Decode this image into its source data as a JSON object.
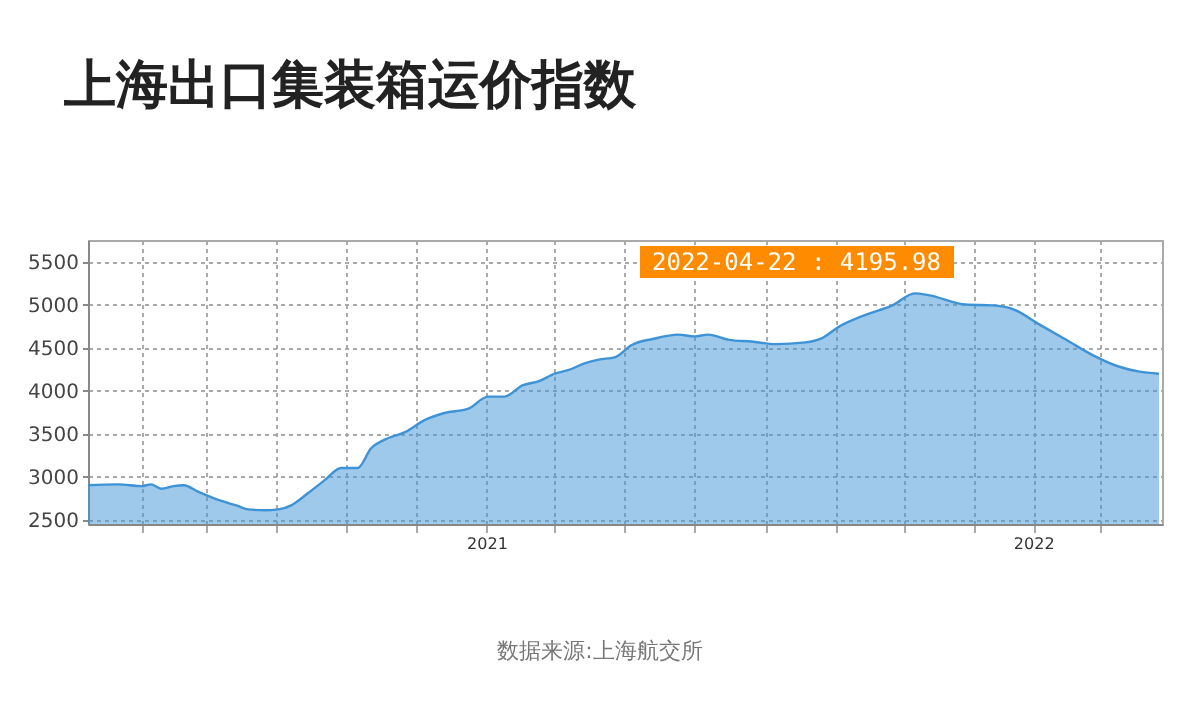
{
  "chart_data": {
    "type": "area",
    "title": "上海出口集装箱运价指数",
    "x": [
      "2020-04-10",
      "2020-04-30",
      "2020-05-16",
      "2020-05-22",
      "2020-05-29",
      "2020-06-06",
      "2020-06-13",
      "2020-06-22",
      "2020-07-06",
      "2020-07-19",
      "2020-07-26",
      "2020-08-06",
      "2020-08-15",
      "2020-08-24",
      "2020-09-04",
      "2020-09-15",
      "2020-09-26",
      "2020-10-07",
      "2020-10-16",
      "2020-10-25",
      "2020-11-08",
      "2020-11-21",
      "2020-12-04",
      "2020-12-20",
      "2021-01-02",
      "2021-01-13",
      "2021-01-25",
      "2021-02-05",
      "2021-02-16",
      "2021-02-25",
      "2021-03-08",
      "2021-03-17",
      "2021-03-28",
      "2021-04-08",
      "2021-04-22",
      "2021-05-09",
      "2021-05-20",
      "2021-05-29",
      "2021-06-12",
      "2021-06-27",
      "2021-07-13",
      "2021-08-02",
      "2021-08-13",
      "2021-08-24",
      "2021-09-11",
      "2021-09-29",
      "2021-10-14",
      "2021-10-23",
      "2021-11-17",
      "2021-12-05",
      "2021-12-18",
      "2022-01-05",
      "2022-01-23",
      "2022-02-10",
      "2022-02-27",
      "2022-03-13",
      "2022-03-26"
    ],
    "series": [
      {
        "color": "#3d93d6",
        "values": [
          2900,
          2910,
          2890,
          2910,
          2860,
          2890,
          2900,
          2830,
          2730,
          2660,
          2620,
          2610,
          2620,
          2670,
          2810,
          2960,
          3100,
          3100,
          3330,
          3430,
          3520,
          3660,
          3740,
          3790,
          3930,
          3930,
          4060,
          4110,
          4200,
          4240,
          4320,
          4360,
          4390,
          4530,
          4600,
          4650,
          4630,
          4650,
          4590,
          4570,
          4540,
          4560,
          4610,
          4740,
          4880,
          4990,
          5130,
          5110,
          5000,
          4990,
          4950,
          4770,
          4590,
          4410,
          4280,
          4220,
          4196
        ]
      }
    ],
    "xlim": [
      "2020-04-10",
      "2022-03-28"
    ],
    "xticks": [
      {
        "value": "2020-05-16",
        "label": null
      },
      {
        "value": "2020-06-28",
        "label": null
      },
      {
        "value": "2020-08-14",
        "label": null
      },
      {
        "value": "2020-09-29",
        "label": null
      },
      {
        "value": "2020-11-15",
        "label": null
      },
      {
        "value": "2021-01-01",
        "label": "2021"
      },
      {
        "value": "2021-02-15",
        "label": null
      },
      {
        "value": "2021-04-03",
        "label": null
      },
      {
        "value": "2021-05-20",
        "label": null
      },
      {
        "value": "2021-07-06",
        "label": null
      },
      {
        "value": "2021-08-22",
        "label": null
      },
      {
        "value": "2021-10-07",
        "label": null
      },
      {
        "value": "2021-11-23",
        "label": null
      },
      {
        "value": "2022-01-01",
        "label": "2022"
      },
      {
        "value": "2022-02-15",
        "label": null
      }
    ],
    "ylim": [
      2450,
      5750
    ],
    "yticks": [
      2500,
      3000,
      3500,
      4000,
      4500,
      5000,
      5500
    ],
    "grid": true,
    "annotations": [
      "2022-04-22 : 4195.98",
      "数据来源:上海航交所"
    ]
  }
}
